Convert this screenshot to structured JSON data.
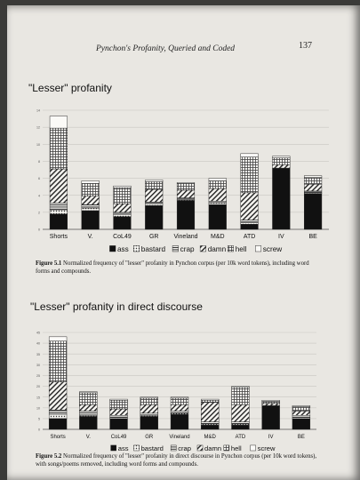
{
  "header": {
    "running_title": "Pynchon's Profanity, Queried and Coded",
    "page_number": "137"
  },
  "patterns": {
    "ass": "solid",
    "bastard": "dots",
    "crap": "hlines",
    "damn": "diag",
    "hell": "grid",
    "screw": "white"
  },
  "chart_data": [
    {
      "type": "bar",
      "stacked": true,
      "title": "\"Lesser\" profanity",
      "categories": [
        "Shorts",
        "V.",
        "CoL49",
        "GR",
        "Vineland",
        "M&D",
        "ATD",
        "IV",
        "BE"
      ],
      "ylim": [
        0,
        14
      ],
      "yticks": [
        0,
        2,
        4,
        6,
        8,
        10,
        12,
        14
      ],
      "grid": true,
      "legend_position": "bottom",
      "series": [
        {
          "name": "ass",
          "values": [
            1.8,
            2.2,
            1.5,
            2.8,
            3.4,
            2.9,
            0.6,
            7.2,
            4.2
          ]
        },
        {
          "name": "bastard",
          "values": [
            0.5,
            0.3,
            0.2,
            0.2,
            0.1,
            0.2,
            0.2,
            0.0,
            0.1
          ]
        },
        {
          "name": "crap",
          "values": [
            0.8,
            0.4,
            0.3,
            0.2,
            0.2,
            0.2,
            0.3,
            0.0,
            0.2
          ]
        },
        {
          "name": "damn",
          "values": [
            4.0,
            1.0,
            1.0,
            1.5,
            0.9,
            1.5,
            3.2,
            0.4,
            0.8
          ]
        },
        {
          "name": "hell",
          "values": [
            4.8,
            1.5,
            1.9,
            0.9,
            0.8,
            0.9,
            4.2,
            0.8,
            0.8
          ]
        },
        {
          "name": "screw",
          "values": [
            1.4,
            0.3,
            0.2,
            0.2,
            0.1,
            0.3,
            0.4,
            0.2,
            0.2
          ]
        }
      ],
      "caption_label": "Figure 5.1",
      "caption": "Normalized frequency of \"lesser\" profanity in Pynchon corpus (per 10k word tokens), including word forms and compounds."
    },
    {
      "type": "bar",
      "stacked": true,
      "title": "\"Lesser\" profanity in direct discourse",
      "categories": [
        "Shorts",
        "V.",
        "CoL49",
        "GR",
        "Vineland",
        "M&D",
        "ATD",
        "IV",
        "BE"
      ],
      "ylim": [
        0,
        45
      ],
      "yticks": [
        0,
        5,
        10,
        15,
        20,
        25,
        30,
        35,
        40,
        45
      ],
      "grid": true,
      "legend_position": "bottom",
      "series": [
        {
          "name": "ass",
          "values": [
            5.0,
            6.0,
            5.0,
            6.0,
            7.0,
            2.0,
            2.0,
            11.0,
            5.0
          ]
        },
        {
          "name": "bastard",
          "values": [
            2.0,
            0.5,
            0.5,
            0.5,
            0.5,
            0.5,
            0.5,
            0.0,
            0.5
          ]
        },
        {
          "name": "crap",
          "values": [
            2.0,
            2.0,
            1.0,
            1.0,
            1.0,
            1.0,
            1.0,
            0.0,
            1.0
          ]
        },
        {
          "name": "damn",
          "values": [
            13.0,
            3.0,
            3.0,
            4.0,
            3.0,
            9.0,
            8.0,
            1.0,
            2.0
          ]
        },
        {
          "name": "hell",
          "values": [
            19.0,
            5.5,
            4.0,
            3.0,
            3.0,
            1.0,
            8.0,
            1.0,
            2.0
          ]
        },
        {
          "name": "screw",
          "values": [
            2.0,
            0.5,
            0.5,
            0.5,
            0.5,
            0.5,
            0.5,
            0.5,
            0.5
          ]
        }
      ],
      "caption_label": "Figure 5.2",
      "caption": "Normalized frequency of \"lesser\" profanity in direct discourse in Pynchon corpus (per 10k word tokens), with songs/poems removed, including word forms and compounds."
    }
  ]
}
